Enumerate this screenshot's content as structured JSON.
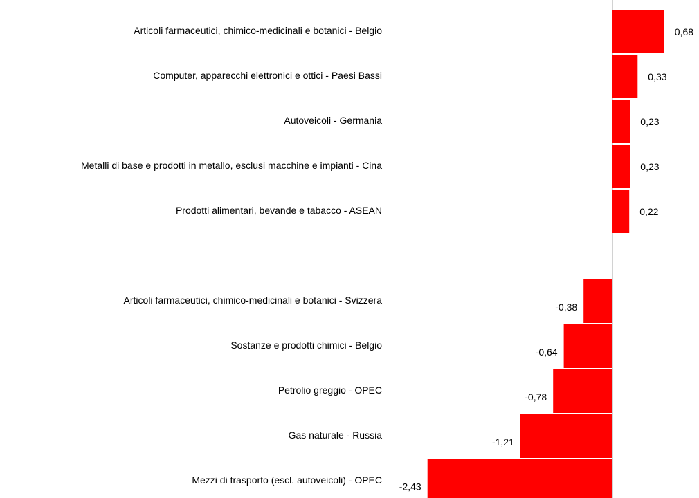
{
  "chart_data": {
    "type": "barh",
    "categories": [
      "Articoli farmaceutici, chimico-medicinali e botanici - Belgio",
      "Computer, apparecchi elettronici e ottici - Paesi Bassi",
      "Autoveicoli - Germania",
      "Metalli di base e prodotti in metallo, esclusi macchine e impianti - Cina",
      "Prodotti alimentari, bevande e tabacco - ASEAN",
      null,
      "Articoli farmaceutici, chimico-medicinali e botanici - Svizzera",
      "Sostanze e prodotti chimici - Belgio",
      "Petrolio greggio - OPEC",
      "Gas naturale - Russia",
      "Mezzi di trasporto (escl. autoveicoli) - OPEC"
    ],
    "values": [
      0.68,
      0.33,
      0.23,
      0.23,
      0.22,
      null,
      -0.38,
      -0.64,
      -0.78,
      -1.21,
      -2.43
    ],
    "value_labels": [
      "0,68",
      "0,33",
      "0,23",
      "0,23",
      "0,22",
      null,
      "-0,38",
      "-0,64",
      "-0,78",
      "-1,21",
      "-2,43"
    ],
    "color": "#ff0000"
  }
}
